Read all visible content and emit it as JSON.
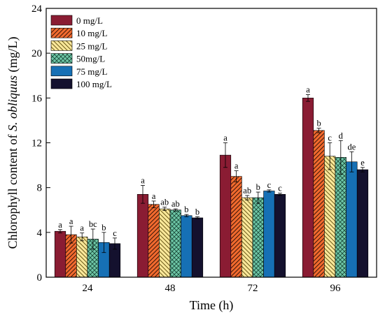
{
  "chart_data": {
    "type": "bar",
    "xlabel": "Time (h)",
    "ylabel_prefix": "Chlorophyll content of ",
    "ylabel_italic": "S. obliquus",
    "ylabel_suffix": " (mg/L)",
    "categories": [
      "24",
      "48",
      "72",
      "96"
    ],
    "ylim": [
      0,
      24
    ],
    "yticks": [
      "0",
      "4",
      "8",
      "12",
      "16",
      "20",
      "24"
    ],
    "legend_position": "top-left",
    "series": [
      {
        "name": "0 mg/L",
        "values": [
          4.1,
          7.4,
          10.9,
          16.0
        ],
        "errors": [
          0.15,
          0.8,
          1.1,
          0.3
        ],
        "labels": [
          "a",
          "a",
          "a",
          "a"
        ],
        "color": "#8a1c33",
        "pattern": "solid"
      },
      {
        "name": "10 mg/L",
        "values": [
          3.8,
          6.5,
          9.0,
          13.1
        ],
        "errors": [
          0.75,
          0.3,
          0.5,
          0.2
        ],
        "labels": [
          "a",
          "a",
          "a",
          "b"
        ],
        "color": "#f26a2e",
        "pattern": "hatch-right"
      },
      {
        "name": "25 mg/L",
        "values": [
          3.6,
          6.1,
          7.1,
          10.8
        ],
        "errors": [
          0.35,
          0.15,
          0.2,
          1.2
        ],
        "labels": [
          "a",
          "ab",
          "ab",
          "c"
        ],
        "color": "#fbe89a",
        "pattern": "hatch-left"
      },
      {
        "name": "50mg/L",
        "values": [
          3.4,
          6.0,
          7.1,
          10.7
        ],
        "errors": [
          0.9,
          0.1,
          0.5,
          1.5
        ],
        "labels": [
          "bc",
          "ab",
          "b",
          "d"
        ],
        "color": "#6fc8a8",
        "pattern": "crosshatch"
      },
      {
        "name": "75 mg/L",
        "values": [
          3.1,
          5.5,
          7.7,
          10.3
        ],
        "errors": [
          0.9,
          0.1,
          0.1,
          0.9
        ],
        "labels": [
          "b",
          "b",
          "c",
          "de"
        ],
        "color": "#1670b5",
        "pattern": "solid"
      },
      {
        "name": "100 mg/L",
        "values": [
          3.0,
          5.3,
          7.4,
          9.6
        ],
        "errors": [
          0.5,
          0.1,
          0.1,
          0.2
        ],
        "labels": [
          "c",
          "b",
          "c",
          "e"
        ],
        "color": "#14112e",
        "pattern": "solid"
      }
    ]
  }
}
